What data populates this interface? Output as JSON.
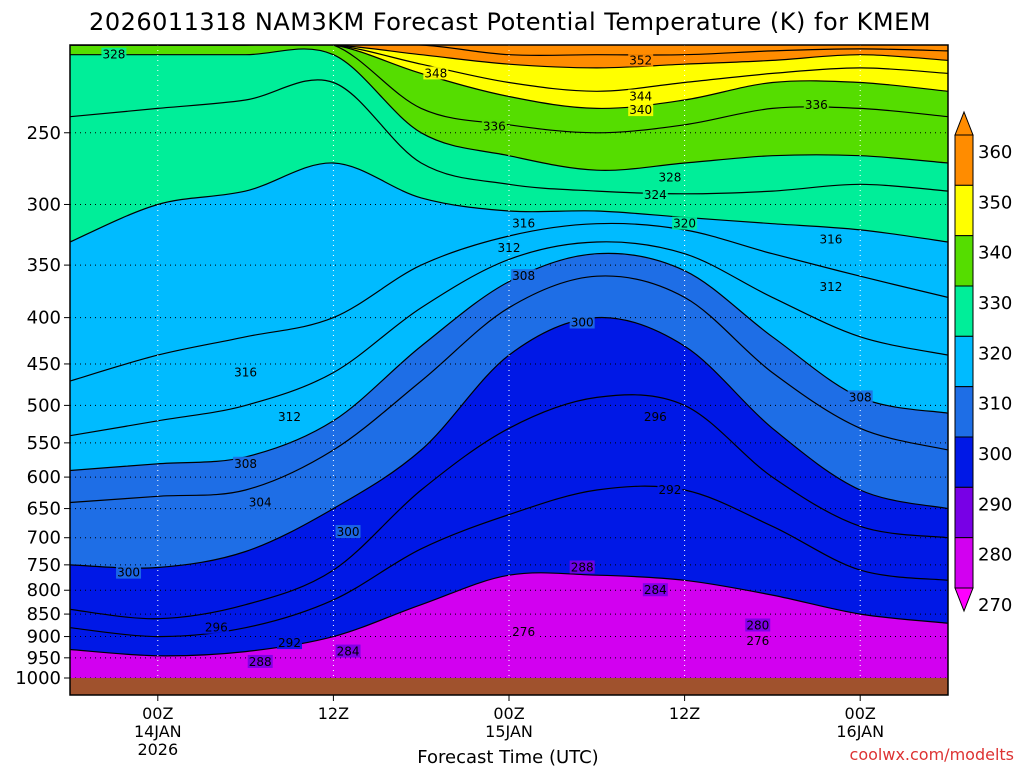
{
  "title": "2026011318 NAM3KM Forecast Potential Temperature (K) for KMEM",
  "x_axis_title": "Forecast Time (UTC)",
  "credit": "coolwx.com/modelts",
  "x_ticks": [
    {
      "lines": [
        "00Z",
        "14JAN",
        "2026"
      ]
    },
    {
      "lines": [
        "12Z"
      ]
    },
    {
      "lines": [
        "00Z",
        "15JAN"
      ]
    },
    {
      "lines": [
        "12Z"
      ]
    },
    {
      "lines": [
        "00Z",
        "16JAN"
      ]
    }
  ],
  "colorbar": {
    "labels": [
      "360",
      "350",
      "340",
      "330",
      "320",
      "310",
      "300",
      "290",
      "280",
      "270"
    ],
    "bins": [
      {
        "from": 350,
        "to": 360,
        "color": "#ff8c00"
      },
      {
        "from": 340,
        "to": 350,
        "color": "#ffff00"
      },
      {
        "from": 330,
        "to": 340,
        "color": "#55dd00"
      },
      {
        "from": 320,
        "to": 330,
        "color": "#00ee99"
      },
      {
        "from": 310,
        "to": 320,
        "color": "#00bbff"
      },
      {
        "from": 300,
        "to": 310,
        "color": "#1e6ee6"
      },
      {
        "from": 290,
        "to": 300,
        "color": "#0018e6"
      },
      {
        "from": 280,
        "to": 290,
        "color": "#7800e6"
      },
      {
        "from": 270,
        "to": 280,
        "color": "#d200f0"
      }
    ]
  },
  "chart_data": {
    "type": "heatmap",
    "title": "2026011318 NAM3KM Forecast Potential Temperature (K) for KMEM",
    "xlabel": "Forecast Time (UTC)",
    "ylabel": "",
    "x_range_hours": [
      -6,
      54
    ],
    "x_ticks_hours": [
      0,
      12,
      24,
      36,
      48
    ],
    "x_ticks_labels": [
      "00Z 14JAN 2026",
      "12Z",
      "00Z 15JAN",
      "12Z",
      "00Z 16JAN"
    ],
    "y_scale": "log-pressure",
    "y_range_hPa": [
      200,
      1000
    ],
    "y_ticks": [
      250,
      300,
      350,
      400,
      450,
      500,
      550,
      600,
      650,
      700,
      750,
      800,
      850,
      900,
      950,
      1000
    ],
    "y_tick_labels": [
      "250",
      "300",
      "350",
      "400",
      "450",
      "500",
      "550",
      "600",
      "650",
      "700",
      "750",
      "800",
      "850",
      "900",
      "950",
      "1000"
    ],
    "colorbar_range": [
      270,
      360
    ],
    "colorbar_step": 10,
    "contour_interval": 2,
    "grid": "dotted",
    "times_hours": [
      -6,
      0,
      6,
      12,
      18,
      24,
      30,
      36,
      42,
      48,
      54
    ],
    "isentropes": [
      {
        "theta": 288,
        "p_hPa": [
          930,
          945,
          935,
          900,
          830,
          770,
          770,
          780,
          810,
          850,
          870
        ]
      },
      {
        "theta": 292,
        "p_hPa": [
          880,
          900,
          880,
          820,
          720,
          660,
          620,
          620,
          680,
          760,
          780
        ]
      },
      {
        "theta": 296,
        "p_hPa": [
          840,
          860,
          830,
          760,
          620,
          530,
          490,
          500,
          600,
          680,
          700
        ]
      },
      {
        "theta": 300,
        "p_hPa": [
          750,
          755,
          725,
          650,
          560,
          440,
          400,
          430,
          530,
          620,
          650
        ]
      },
      {
        "theta": 304,
        "p_hPa": [
          640,
          630,
          620,
          560,
          470,
          390,
          360,
          380,
          460,
          530,
          560
        ]
      },
      {
        "theta": 308,
        "p_hPa": [
          590,
          580,
          570,
          520,
          430,
          365,
          340,
          355,
          420,
          490,
          510
        ]
      },
      {
        "theta": 312,
        "p_hPa": [
          540,
          520,
          500,
          460,
          390,
          345,
          330,
          340,
          380,
          420,
          440
        ]
      },
      {
        "theta": 316,
        "p_hPa": [
          470,
          440,
          420,
          400,
          350,
          325,
          315,
          320,
          340,
          360,
          380
        ]
      },
      {
        "theta": 320,
        "p_hPa": [
          330,
          300,
          290,
          270,
          295,
          305,
          305,
          310,
          315,
          320,
          330
        ]
      },
      {
        "theta": 324,
        "p_hPa": [
          240,
          235,
          230,
          220,
          270,
          285,
          290,
          292,
          290,
          285,
          290
        ]
      },
      {
        "theta": 328,
        "p_hPa": [
          205,
          205,
          205,
          205,
          250,
          265,
          275,
          270,
          265,
          265,
          270
        ]
      },
      {
        "theta": 336,
        "p_hPa": [
          200,
          200,
          200,
          200,
          235,
          245,
          250,
          245,
          235,
          235,
          240
        ]
      },
      {
        "theta": 340,
        "p_hPa": [
          200,
          200,
          200,
          200,
          215,
          228,
          235,
          230,
          220,
          220,
          225
        ]
      },
      {
        "theta": 344,
        "p_hPa": [
          200,
          200,
          200,
          200,
          210,
          220,
          225,
          220,
          215,
          212,
          215
        ]
      },
      {
        "theta": 348,
        "p_hPa": [
          200,
          200,
          200,
          200,
          205,
          210,
          212,
          210,
          208,
          205,
          208
        ]
      },
      {
        "theta": 352,
        "p_hPa": [
          200,
          200,
          200,
          200,
          200,
          205,
          205,
          205,
          203,
          202,
          203
        ]
      }
    ],
    "contour_labels": [
      {
        "text": "328",
        "t": -3,
        "p": 205
      },
      {
        "text": "348",
        "t": 19,
        "p": 215
      },
      {
        "text": "352",
        "t": 33,
        "p": 208
      },
      {
        "text": "344",
        "t": 33,
        "p": 228
      },
      {
        "text": "340",
        "t": 33,
        "p": 236
      },
      {
        "text": "336",
        "t": 23,
        "p": 246
      },
      {
        "text": "336",
        "t": 45,
        "p": 233
      },
      {
        "text": "328",
        "t": 35,
        "p": 280
      },
      {
        "text": "324",
        "t": 34,
        "p": 293
      },
      {
        "text": "320",
        "t": 36,
        "p": 315
      },
      {
        "text": "316",
        "t": 25,
        "p": 315
      },
      {
        "text": "316",
        "t": 46,
        "p": 328
      },
      {
        "text": "312",
        "t": 24,
        "p": 335
      },
      {
        "text": "312",
        "t": 46,
        "p": 370
      },
      {
        "text": "308",
        "t": 25,
        "p": 360
      },
      {
        "text": "308",
        "t": 48,
        "p": 490
      },
      {
        "text": "300",
        "t": 29,
        "p": 405
      },
      {
        "text": "296",
        "t": 34,
        "p": 515
      },
      {
        "text": "292",
        "t": 35,
        "p": 620
      },
      {
        "text": "316",
        "t": 6,
        "p": 460
      },
      {
        "text": "312",
        "t": 9,
        "p": 515
      },
      {
        "text": "308",
        "t": 6,
        "p": 580
      },
      {
        "text": "304",
        "t": 7,
        "p": 640
      },
      {
        "text": "300",
        "t": 13,
        "p": 690
      },
      {
        "text": "300",
        "t": -2,
        "p": 765
      },
      {
        "text": "296",
        "t": 4,
        "p": 880
      },
      {
        "text": "292",
        "t": 9,
        "p": 915
      },
      {
        "text": "288",
        "t": 29,
        "p": 755
      },
      {
        "text": "284",
        "t": 34,
        "p": 800
      },
      {
        "text": "288",
        "t": 7,
        "p": 960
      },
      {
        "text": "284",
        "t": 13,
        "p": 935
      },
      {
        "text": "276",
        "t": 25,
        "p": 890
      },
      {
        "text": "280",
        "t": 41,
        "p": 875
      },
      {
        "text": "276",
        "t": 41,
        "p": 910
      }
    ],
    "ground_band_color": "#a0522d"
  }
}
